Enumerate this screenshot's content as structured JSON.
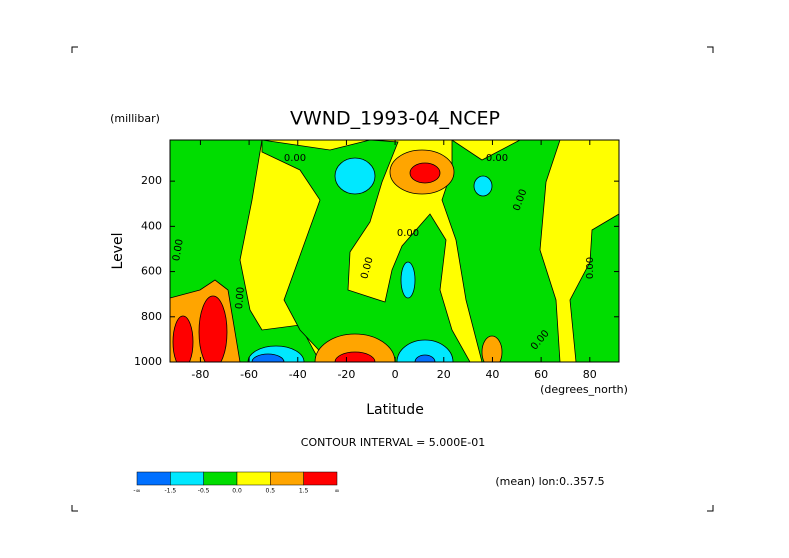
{
  "chart_data": {
    "type": "contour",
    "title": "VWND_1993-04_NCEP",
    "y_unit": "(millibar)",
    "ylabel": "Level",
    "xlabel": "Latitude",
    "x_unit": "(degrees_north)",
    "xlim": [
      -92.5,
      92
    ],
    "xticks": [
      -80,
      -60,
      -40,
      -20,
      0,
      20,
      40,
      60,
      80
    ],
    "ylim": [
      1000,
      18
    ],
    "yticks": [
      200,
      400,
      600,
      800,
      1000
    ],
    "contour_interval": "CONTOUR INTERVAL = 5.000E-01",
    "note": "(mean) lon:0..357.5",
    "contour_labels": [
      "0.00",
      "0.00",
      "0.00",
      "0.00",
      "0.00",
      "0.00",
      "0.00",
      "0.00",
      "0.00"
    ],
    "colorbar": {
      "colors": [
        "#0070ff",
        "#00e8ff",
        "#00dd00",
        "#ffff00",
        "#ffa500",
        "#ff0000"
      ],
      "labels": [
        "-∞",
        "-1.5",
        "-0.5",
        "0.0",
        "0.5",
        "1.5",
        "∞"
      ]
    }
  }
}
